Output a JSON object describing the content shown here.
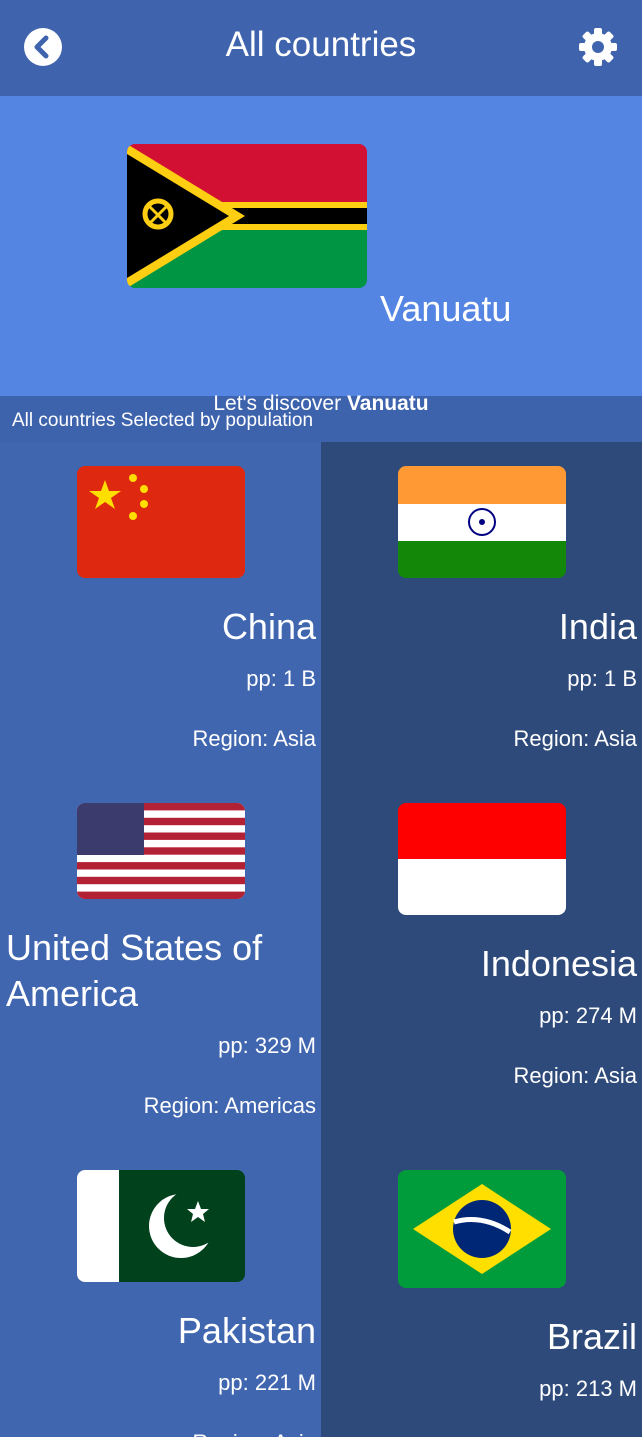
{
  "header": {
    "title": "All countries"
  },
  "featured": {
    "name": "Vanuatu",
    "discover_prefix": "Let's discover",
    "discover_name": "Vanuatu"
  },
  "section_label": "All countries Selected by population",
  "countries": [
    {
      "name": "China",
      "population": "pp: 1 B",
      "region": "Region: Asia"
    },
    {
      "name": "India",
      "population": "pp: 1 B",
      "region": "Region: Asia"
    },
    {
      "name": "United States of America",
      "population": "pp: 329 M",
      "region": "Region: Americas"
    },
    {
      "name": "Indonesia",
      "population": "pp: 274 M",
      "region": "Region: Asia"
    },
    {
      "name": "Pakistan",
      "population": "pp: 221 M",
      "region": "Region: Asia"
    },
    {
      "name": "Brazil",
      "population": "pp: 213 M"
    }
  ]
}
